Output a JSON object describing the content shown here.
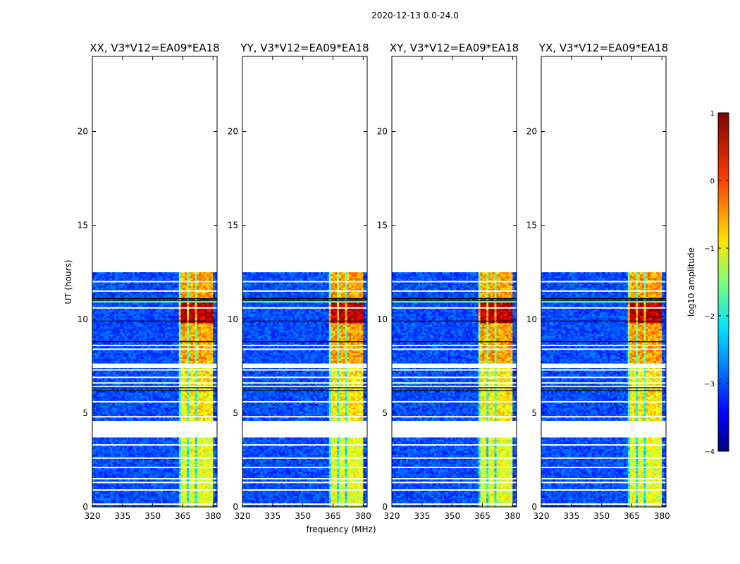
{
  "figure": {
    "suptitle": "2020-12-13 0.0-24.0",
    "xlabel": "frequency (MHz)",
    "ylabel": "UT (hours)"
  },
  "chart_data": {
    "type": "heatmap",
    "panels": [
      {
        "title": "XX, V3*V12=EA09*EA18",
        "polarization": "XX"
      },
      {
        "title": "YY, V3*V12=EA09*EA18",
        "polarization": "YY"
      },
      {
        "title": "XY, V3*V12=EA09*EA18",
        "polarization": "XY"
      },
      {
        "title": "YX, V3*V12=EA09*EA18",
        "polarization": "YX"
      }
    ],
    "xlim": [
      320,
      382
    ],
    "xticks": [
      320,
      335,
      350,
      365,
      380
    ],
    "ylim": [
      0,
      24
    ],
    "yticks": [
      0,
      5,
      10,
      15,
      20
    ],
    "data_time_ranges_hours": [
      [
        0.0,
        3.7
      ],
      [
        4.6,
        7.4
      ],
      [
        7.6,
        12.5
      ]
    ],
    "gap_ranges_hours": [
      [
        3.7,
        4.6
      ],
      [
        12.5,
        24.0
      ]
    ],
    "strong_emission_band_mhz": [
      363,
      380
    ],
    "peak_emission_time_hours": [
      9.8,
      11.1
    ],
    "colorbar": {
      "label": "log10 amplitude",
      "range": [
        -4,
        1
      ],
      "ticks": [
        1,
        0,
        -1,
        -2,
        -3,
        -4
      ],
      "colormap": "jet"
    }
  }
}
